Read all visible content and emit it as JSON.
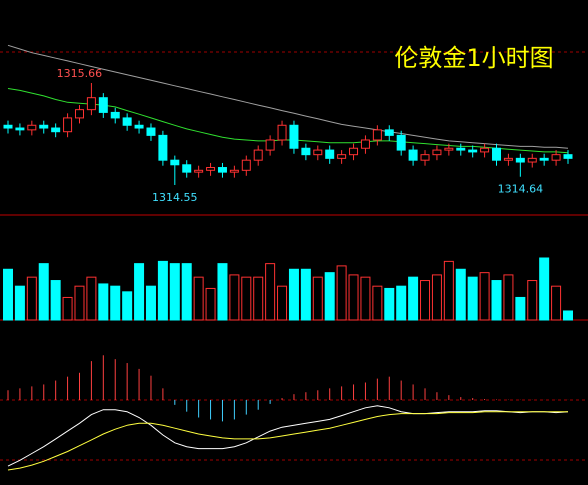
{
  "chart_data": [
    {
      "type": "candlestick",
      "title": "伦敦金1小时图",
      "up_color": "#ff3232",
      "down_color": "#00ffff",
      "open": [
        1315.2,
        1315.17,
        1315.15,
        1315.2,
        1315.17,
        1315.13,
        1315.28,
        1315.37,
        1315.5,
        1315.34,
        1315.28,
        1315.2,
        1315.17,
        1315.09,
        1314.82,
        1314.77,
        1314.69,
        1314.71,
        1314.74,
        1314.69,
        1314.71,
        1314.82,
        1314.93,
        1315.04,
        1315.2,
        1314.95,
        1314.88,
        1314.93,
        1314.84,
        1314.88,
        1314.95,
        1315.04,
        1315.15,
        1315.09,
        1314.93,
        1314.82,
        1314.88,
        1314.93,
        1314.95,
        1314.93,
        1314.91,
        1314.95,
        1314.82,
        1314.84,
        1314.8,
        1314.84,
        1314.82,
        1314.88
      ],
      "high": [
        1315.25,
        1315.22,
        1315.25,
        1315.25,
        1315.22,
        1315.33,
        1315.42,
        1315.66,
        1315.55,
        1315.39,
        1315.33,
        1315.25,
        1315.22,
        1315.14,
        1314.87,
        1314.82,
        1314.76,
        1314.79,
        1314.79,
        1314.76,
        1314.87,
        1314.98,
        1315.09,
        1315.25,
        1315.25,
        1315.0,
        1314.98,
        1314.98,
        1314.93,
        1315.0,
        1315.09,
        1315.2,
        1315.2,
        1315.14,
        1314.98,
        1314.93,
        1314.98,
        1315.0,
        1315.0,
        1314.98,
        1315.0,
        1315.0,
        1314.89,
        1314.89,
        1314.89,
        1314.89,
        1314.93,
        1314.93
      ],
      "low": [
        1315.11,
        1315.09,
        1315.09,
        1315.11,
        1315.07,
        1315.07,
        1315.22,
        1315.31,
        1315.28,
        1315.22,
        1315.14,
        1315.11,
        1315.03,
        1314.76,
        1314.55,
        1314.63,
        1314.63,
        1314.65,
        1314.63,
        1314.63,
        1314.65,
        1314.76,
        1314.87,
        1314.98,
        1314.89,
        1314.82,
        1314.82,
        1314.78,
        1314.78,
        1314.82,
        1314.89,
        1314.98,
        1315.03,
        1314.87,
        1314.76,
        1314.76,
        1314.82,
        1314.87,
        1314.87,
        1314.85,
        1314.85,
        1314.76,
        1314.76,
        1314.64,
        1314.74,
        1314.76,
        1314.76,
        1314.78
      ],
      "close": [
        1315.17,
        1315.15,
        1315.2,
        1315.17,
        1315.13,
        1315.28,
        1315.37,
        1315.5,
        1315.34,
        1315.28,
        1315.2,
        1315.17,
        1315.09,
        1314.82,
        1314.77,
        1314.69,
        1314.71,
        1314.74,
        1314.69,
        1314.71,
        1314.82,
        1314.93,
        1315.04,
        1315.2,
        1314.95,
        1314.88,
        1314.93,
        1314.84,
        1314.88,
        1314.95,
        1315.04,
        1315.15,
        1315.09,
        1314.93,
        1314.82,
        1314.88,
        1314.93,
        1314.95,
        1314.93,
        1314.91,
        1314.95,
        1314.82,
        1314.84,
        1314.8,
        1314.84,
        1314.82,
        1314.88,
        1314.84
      ],
      "series": [
        {
          "color": "#a0a0a0",
          "values": [
            1316.07,
            1316.03,
            1315.99,
            1315.96,
            1315.93,
            1315.9,
            1315.87,
            1315.84,
            1315.81,
            1315.78,
            1315.75,
            1315.72,
            1315.69,
            1315.66,
            1315.63,
            1315.6,
            1315.57,
            1315.54,
            1315.51,
            1315.48,
            1315.45,
            1315.42,
            1315.39,
            1315.36,
            1315.33,
            1315.3,
            1315.27,
            1315.24,
            1315.21,
            1315.19,
            1315.17,
            1315.15,
            1315.13,
            1315.11,
            1315.09,
            1315.07,
            1315.05,
            1315.03,
            1315.02,
            1315.01,
            1315.0,
            1314.99,
            1314.98,
            1314.97,
            1314.97,
            1314.96,
            1314.96,
            1314.95
          ]
        },
        {
          "color": "#30e030",
          "values": [
            1315.6,
            1315.58,
            1315.55,
            1315.52,
            1315.48,
            1315.45,
            1315.44,
            1315.43,
            1315.42,
            1315.4,
            1315.36,
            1315.32,
            1315.28,
            1315.24,
            1315.2,
            1315.16,
            1315.13,
            1315.1,
            1315.07,
            1315.05,
            1315.04,
            1315.03,
            1315.03,
            1315.04,
            1315.04,
            1315.03,
            1315.02,
            1315.01,
            1315.01,
            1315.01,
            1315.02,
            1315.03,
            1315.03,
            1315.02,
            1315.01,
            1315.0,
            1314.99,
            1314.98,
            1314.97,
            1314.97,
            1314.96,
            1314.95,
            1314.94,
            1314.93,
            1314.92,
            1314.91,
            1314.91,
            1314.9
          ]
        }
      ]
    },
    {
      "type": "volume",
      "values": [
        45,
        30,
        38,
        50,
        35,
        20,
        30,
        38,
        32,
        30,
        25,
        50,
        30,
        52,
        50,
        50,
        38,
        28,
        50,
        40,
        38,
        38,
        50,
        30,
        45,
        45,
        38,
        42,
        48,
        40,
        38,
        30,
        28,
        30,
        38,
        35,
        40,
        52,
        45,
        38,
        42,
        35,
        40,
        20,
        35,
        55,
        30,
        8
      ]
    },
    {
      "type": "macd",
      "pos_color": "#ff4040",
      "neg_color": "#40d0ff",
      "values": [
        10,
        12,
        14,
        16,
        20,
        24,
        28,
        40,
        46,
        42,
        38,
        32,
        25,
        12,
        -5,
        -12,
        -18,
        -20,
        -22,
        -20,
        -15,
        -10,
        -4,
        2,
        6,
        8,
        10,
        12,
        14,
        16,
        18,
        22,
        24,
        20,
        16,
        12,
        8,
        5,
        3,
        2,
        1,
        0.5,
        0.3,
        0.2,
        0.2,
        0.1,
        0.1,
        0.1
      ],
      "series": [
        {
          "color": "#ffffff",
          "values": [
            -68,
            -62,
            -55,
            -48,
            -40,
            -32,
            -24,
            -15,
            -10,
            -10,
            -12,
            -18,
            -26,
            -36,
            -44,
            -48,
            -50,
            -50,
            -50,
            -48,
            -44,
            -38,
            -32,
            -28,
            -26,
            -24,
            -22,
            -20,
            -16,
            -12,
            -8,
            -6,
            -8,
            -12,
            -14,
            -14,
            -13,
            -12,
            -12,
            -12,
            -11,
            -11,
            -12,
            -13,
            -12,
            -12,
            -13,
            -12
          ]
        },
        {
          "color": "#ffff40",
          "values": [
            -72,
            -70,
            -67,
            -63,
            -58,
            -53,
            -47,
            -41,
            -35,
            -30,
            -26,
            -24,
            -24,
            -26,
            -29,
            -32,
            -35,
            -37,
            -39,
            -40,
            -40,
            -40,
            -39,
            -37,
            -35,
            -33,
            -31,
            -29,
            -26,
            -23,
            -20,
            -17,
            -15,
            -14,
            -14,
            -14,
            -14,
            -13,
            -13,
            -13,
            -12,
            -12,
            -12,
            -12,
            -12,
            -12,
            -12,
            -12
          ]
        }
      ]
    }
  ]
}
